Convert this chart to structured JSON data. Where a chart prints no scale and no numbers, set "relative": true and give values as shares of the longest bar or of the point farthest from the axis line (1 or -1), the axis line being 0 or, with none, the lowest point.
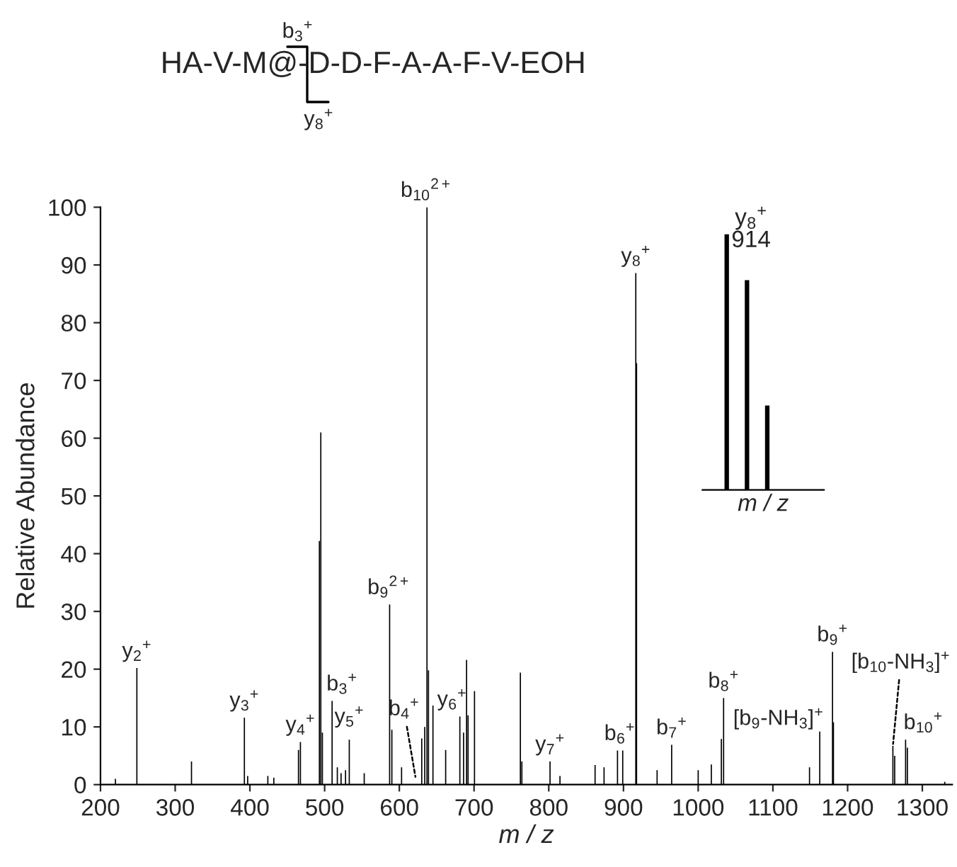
{
  "chart_data": [
    {
      "type": "bar",
      "title": "HA-V-M@-D-D-F-A-A-F-V-EOH",
      "xlabel": "m / z",
      "ylabel": "Relative Abundance",
      "x": [
        220,
        248.7,
        321.8,
        392.6,
        397,
        424,
        432,
        465,
        467.6,
        493,
        494.9,
        497,
        510,
        517,
        522,
        528,
        533,
        553,
        587,
        590,
        603,
        630,
        634,
        637,
        639,
        645,
        662,
        681,
        686,
        690,
        692,
        700.6,
        762,
        764,
        801.7,
        815,
        862,
        874,
        892,
        899,
        916.5,
        917.5,
        945,
        964.5,
        1000,
        1017.6,
        1031,
        1034,
        1149,
        1162.7,
        1179.8,
        1181,
        1260.6,
        1263,
        1277.6,
        1280,
        1330
      ],
      "series": [
        {
          "color": "#000000",
          "values": [
            1,
            20.2,
            4,
            11.6,
            1.5,
            1.5,
            1.2,
            6,
            7.4,
            42.2,
            61,
            9,
            14.5,
            3,
            2,
            2.5,
            7.8,
            2,
            31.2,
            9.5,
            3,
            8,
            10,
            100,
            19.8,
            13.7,
            6,
            11.8,
            9,
            21.6,
            12,
            16.2,
            19.4,
            4,
            4,
            1.5,
            3.4,
            3,
            5.9,
            5.9,
            88.6,
            73,
            2.5,
            6.9,
            2.5,
            3.5,
            7.9,
            15,
            3,
            9.2,
            23,
            10.8,
            6.7,
            5,
            7.8,
            6.4,
            0.5
          ]
        }
      ],
      "xlim": [
        200,
        1340
      ],
      "xticks": [
        200,
        300,
        400,
        500,
        600,
        700,
        800,
        900,
        1000,
        1100,
        1200,
        1300
      ],
      "ylim": [
        0,
        100
      ],
      "yticks": [
        0,
        10,
        20,
        30,
        40,
        50,
        60,
        70,
        80,
        90,
        100
      ],
      "grid": false,
      "legend": false,
      "annotations": [
        "b$_{3}$$^{+}$",
        "y$_{8}$$^{+}$",
        {
          "text": "y$_{2}$$^{+}$",
          "x": 248.7,
          "y": 20.2
        },
        {
          "text": "y$_{3}$$^{+}$",
          "x": 392.6,
          "y": 11.6
        },
        {
          "text": "y$_{4}$$^{+}$",
          "x": 467.6,
          "y": 7.4
        },
        {
          "text": "b$_{3}$$^{+}$",
          "x": 510,
          "y": 14.5
        },
        {
          "text": "y$_{5}$$^{+}$",
          "x": 533,
          "y": 7.8
        },
        {
          "text": "b$_{9}$$^{2+}$",
          "x": 587,
          "y": 31.2
        },
        {
          "text": "b$_{4}$$^{+}$",
          "x": 622,
          "y": 1
        },
        {
          "text": "b$_{10}$$^{2+}$",
          "x": 637,
          "y": 100
        },
        {
          "text": "y$_{6}$$^{+}$",
          "x": 681,
          "y": 11.8
        },
        {
          "text": "y$_{7}$$^{+}$",
          "x": 801.7,
          "y": 4
        },
        {
          "text": "b$_{6}$$^{+}$",
          "x": 895,
          "y": 5.9
        },
        {
          "text": "y$_{8}$$^{+}$",
          "x": 916.5,
          "y": 88.6
        },
        {
          "text": "b$_{7}$$^{+}$",
          "x": 964.5,
          "y": 6.9
        },
        {
          "text": "b$_{8}$$^{+}$",
          "x": 1034,
          "y": 15
        },
        {
          "text": "[b$_{9}$-NH$_{3}$]$^{+}$",
          "x": 1162.7,
          "y": 9.2
        },
        {
          "text": "b$_{9}$$^{+}$",
          "x": 1179.8,
          "y": 23
        },
        {
          "text": "[b$_{10}$-NH$_{3}$]$^{+}$",
          "x": 1260.6,
          "y": 6.7
        },
        {
          "text": "b$_{10}$$^{+}$",
          "x": 1277.6,
          "y": 7.8
        }
      ]
    },
    {
      "type": "bar",
      "relative": true,
      "xlabel": "m / z",
      "categories": [
        null,
        null,
        null
      ],
      "series": [
        {
          "color": "#000000",
          "values": [
            1,
            0.82,
            0.33
          ]
        }
      ],
      "annotations": [
        "y$_{8}$$^{+}$\n914"
      ]
    }
  ]
}
